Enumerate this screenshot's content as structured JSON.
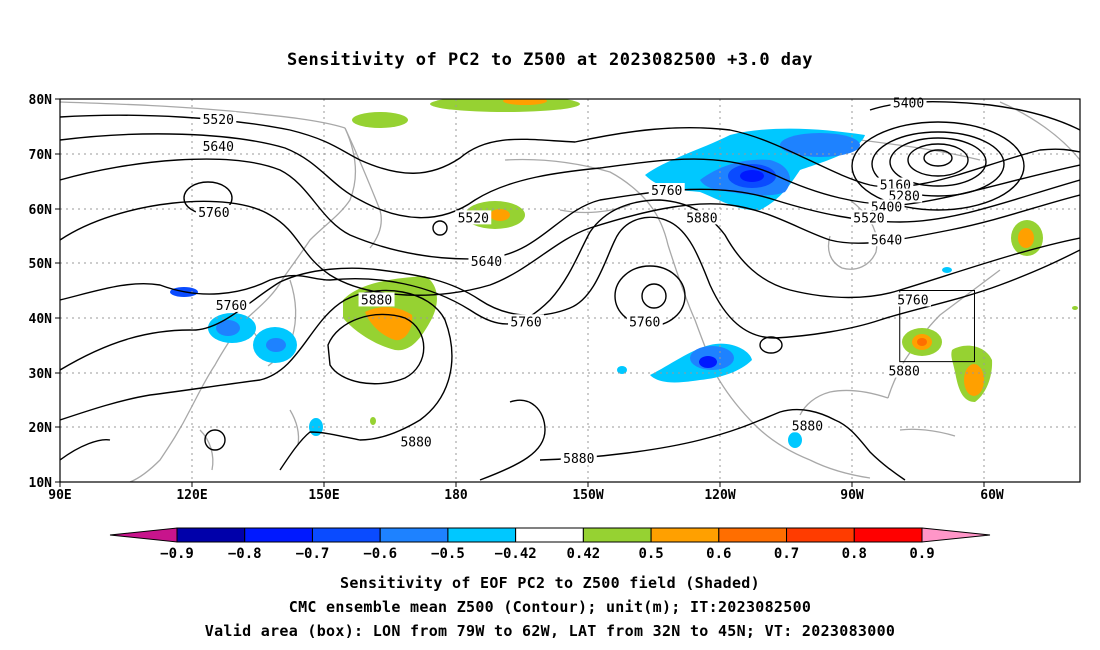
{
  "title": "Sensitivity of PC2 to Z500 at 2023082500 +3.0 day",
  "map": {
    "lat_labels": [
      "80N",
      "70N",
      "60N",
      "50N",
      "40N",
      "30N",
      "20N",
      "10N"
    ],
    "lon_labels": [
      "90E",
      "120E",
      "150E",
      "180",
      "150W",
      "120W",
      "90W",
      "60W"
    ],
    "lon_range": [
      90,
      322
    ],
    "lat_range": [
      10,
      80
    ],
    "grid": true,
    "valid_box": {
      "lon_from": 281,
      "lon_to": 298,
      "lat_from": 32,
      "lat_to": 45
    },
    "contour_labels": [
      {
        "text": "5520",
        "lon": 126,
        "lat": 76
      },
      {
        "text": "5640",
        "lon": 126,
        "lat": 71
      },
      {
        "text": "5760",
        "lon": 125,
        "lat": 59
      },
      {
        "text": "5760",
        "lon": 129,
        "lat": 42
      },
      {
        "text": "5880",
        "lon": 162,
        "lat": 43
      },
      {
        "text": "5520",
        "lon": 184,
        "lat": 58
      },
      {
        "text": "5640",
        "lon": 187,
        "lat": 50
      },
      {
        "text": "5760",
        "lon": 196,
        "lat": 39
      },
      {
        "text": "5760",
        "lon": 223,
        "lat": 39
      },
      {
        "text": "5760",
        "lon": 228,
        "lat": 63
      },
      {
        "text": "5880",
        "lon": 236,
        "lat": 58
      },
      {
        "text": "5400",
        "lon": 283,
        "lat": 79
      },
      {
        "text": "5160",
        "lon": 280,
        "lat": 64
      },
      {
        "text": "5280",
        "lon": 282,
        "lat": 62
      },
      {
        "text": "5400",
        "lon": 278,
        "lat": 60
      },
      {
        "text": "5520",
        "lon": 274,
        "lat": 58
      },
      {
        "text": "5640",
        "lon": 278,
        "lat": 54
      },
      {
        "text": "5760",
        "lon": 284,
        "lat": 43
      },
      {
        "text": "5880",
        "lon": 282,
        "lat": 30
      },
      {
        "text": "5880",
        "lon": 171,
        "lat": 17
      },
      {
        "text": "5880",
        "lon": 208,
        "lat": 14
      },
      {
        "text": "5880",
        "lon": 260,
        "lat": 20
      }
    ]
  },
  "colorbar": {
    "labels": [
      "−0.9",
      "−0.8",
      "−0.7",
      "−0.6",
      "−0.5",
      "−0.42",
      "0.42",
      "0.5",
      "0.6",
      "0.7",
      "0.8",
      "0.9"
    ],
    "colors": [
      "#0000aa",
      "#0019ff",
      "#0a4bff",
      "#1e82ff",
      "#00c8ff",
      "#ffffff",
      "#96d232",
      "#ffa000",
      "#ff6e00",
      "#ff3c00",
      "#ff0000"
    ],
    "low_end_color": "#c8148c",
    "high_end_color": "#ff96c8"
  },
  "captions": [
    "Sensitivity of EOF PC2 to Z500 field (Shaded)",
    "CMC ensemble mean Z500 (Contour); unit(m); IT:2023082500",
    "Valid area (box): LON from 79W to 62W, LAT from 32N to 45N; VT: 2023083000"
  ]
}
